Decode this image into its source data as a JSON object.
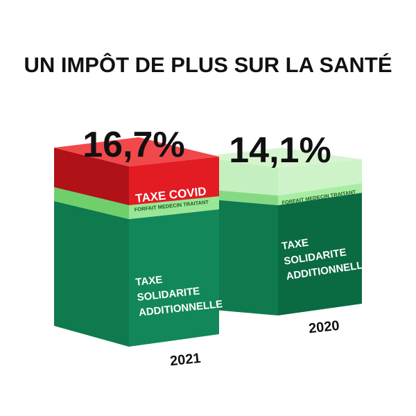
{
  "chart_data": {
    "type": "bar",
    "title": "UN IMPÔT DE PLUS SUR LA SANTÉ",
    "categories": [
      "2021",
      "2020"
    ],
    "totals": [
      "16,7%",
      "14,1%"
    ],
    "bars": [
      {
        "category": "2021",
        "total_label": "16,7%",
        "segments": [
          {
            "name": "TAXE SOLIDARITE ADDITIONNELLE",
            "lines": [
              "TAXE",
              "SOLIDARITE",
              "ADDITIONNELLE"
            ]
          },
          {
            "name": "FORFAIT MEDECIN TRAITANT",
            "lines": [
              "FORFAIT MEDECIN TRAITANT"
            ]
          },
          {
            "name": "TAXE COVID",
            "lines": [
              "TAXE COVID"
            ]
          }
        ]
      },
      {
        "category": "2020",
        "total_label": "14,1%",
        "segments": [
          {
            "name": "TAXE SOLIDARITE ADDITIONNELLE",
            "lines": [
              "TAXE",
              "SOLIDARITE",
              "ADDITIONNELLE"
            ]
          },
          {
            "name": "FORFAIT MEDECIN TRAITANT",
            "lines": [
              "FORFAIT MEDECIN TRAITANT"
            ]
          }
        ]
      }
    ],
    "colors": {
      "taxe_solidarite": "#11875a",
      "forfait": "#8ee58a",
      "taxe_covid": "#e31b23"
    }
  }
}
